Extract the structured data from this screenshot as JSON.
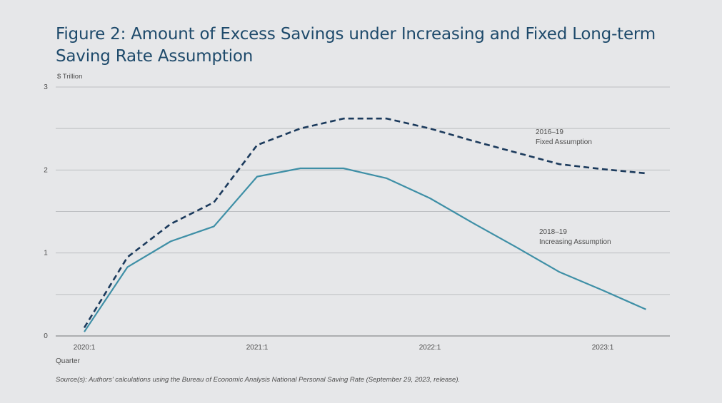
{
  "title": "Figure 2: Amount of Excess Savings under Increasing and Fixed Long-term Saving Rate Assumption",
  "source": "Source(s): Authors' calculations using the Bureau of Economic Analysis National Personal Saving Rate (September 29, 2023, release).",
  "colors": {
    "background": "#e6e7e9",
    "title": "#1e4a6b",
    "fixed_series": "#1b3a5c",
    "increasing_series": "#3e8fa6",
    "grid": "#bdbfc2",
    "axis": "#8a8c8f"
  },
  "chart_data": {
    "type": "line",
    "ylabel": "$ Trillion",
    "xlabel": "Quarter",
    "ylim": [
      0,
      3
    ],
    "y_ticks": [
      "0",
      "1",
      "2",
      "3"
    ],
    "x_tick_labels": [
      "2020:1",
      "2021:1",
      "2022:1",
      "2023:1"
    ],
    "x": [
      "2020:1",
      "2020:2",
      "2020:3",
      "2020:4",
      "2021:1",
      "2021:2",
      "2021:3",
      "2021:4",
      "2022:1",
      "2022:2",
      "2022:3",
      "2022:4",
      "2023:1",
      "2023:2"
    ],
    "grid": true,
    "series": [
      {
        "name": "2016–19 Fixed Assumption",
        "label_line1": "2016–19",
        "label_line2": "Fixed Assumption",
        "style": "dashed",
        "values": [
          0.1,
          0.95,
          1.35,
          1.61,
          2.3,
          2.5,
          2.62,
          2.62,
          2.5,
          2.35,
          2.21,
          2.07,
          2.01,
          1.96
        ]
      },
      {
        "name": "2018–19 Increasing Assumption",
        "label_line1": "2018–19",
        "label_line2": "Increasing Assumption",
        "style": "solid",
        "values": [
          0.05,
          0.83,
          1.14,
          1.32,
          1.92,
          2.02,
          2.02,
          1.9,
          1.66,
          1.36,
          1.07,
          0.77,
          0.55,
          0.32
        ]
      }
    ]
  }
}
